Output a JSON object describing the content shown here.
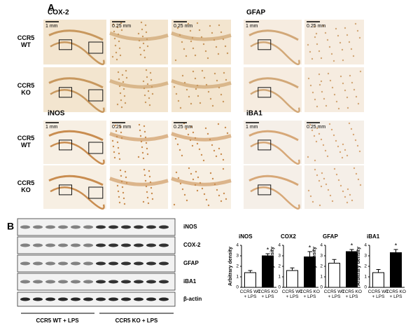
{
  "panel_a": {
    "label": "A",
    "groups": [
      {
        "title": "COX-2",
        "row_labels": [
          "CCR5 WT",
          "CCR5 KO"
        ],
        "scale_labels": [
          "1 mm",
          "0.25 mm",
          "0.25 mm"
        ]
      },
      {
        "title": "GFAP",
        "scale_labels": [
          "1 mm",
          "0.25 mm"
        ]
      },
      {
        "title": "iNOS",
        "row_labels": [
          "CCR5 WT",
          "CCR5 KO"
        ],
        "scale_labels": [
          "1 mm",
          "0.25 mm",
          "0.25 mm"
        ]
      },
      {
        "title": "iBA1",
        "scale_labels": [
          "1 mm",
          "0.25 mm"
        ]
      }
    ]
  },
  "panel_b": {
    "label": "B",
    "blot_labels": [
      "iNOS",
      "COX-2",
      "GFAP",
      "iBA1",
      "β-actin"
    ],
    "group_labels": [
      "CCR5 WT + LPS",
      "CCR5 KO + LPS"
    ]
  },
  "chart_data": [
    {
      "type": "bar",
      "title": "iNOS",
      "ylabel": "Arbitrary density",
      "categories": [
        "CCR5 WT + LPS",
        "CCR5 KO + LPS"
      ],
      "values": [
        1.4,
        3.0
      ],
      "errors": [
        0.2,
        0.2
      ],
      "colors": [
        "#ffffff",
        "#000000"
      ],
      "ylim": [
        0,
        4
      ],
      "yticks": [
        0,
        1,
        2,
        3,
        4
      ],
      "significance_label": "*"
    },
    {
      "type": "bar",
      "title": "COX2",
      "ylabel": "Arbitrary density",
      "categories": [
        "CCR5 WT + LPS",
        "CCR5 KO + LPS"
      ],
      "values": [
        1.6,
        2.9
      ],
      "errors": [
        0.25,
        0.5
      ],
      "colors": [
        "#ffffff",
        "#000000"
      ],
      "ylim": [
        0,
        4
      ],
      "yticks": [
        0,
        1,
        2,
        3,
        4
      ],
      "significance_label": "*"
    },
    {
      "type": "bar",
      "title": "GFAP",
      "ylabel": "Arbitrary density",
      "categories": [
        "CCR5 WT + LPS",
        "CCR5 KO + LPS"
      ],
      "values": [
        2.3,
        3.4
      ],
      "errors": [
        0.35,
        0.2
      ],
      "colors": [
        "#ffffff",
        "#000000"
      ],
      "ylim": [
        0,
        4
      ],
      "yticks": [
        0,
        1,
        2,
        3,
        4
      ],
      "significance_label": "*"
    },
    {
      "type": "bar",
      "title": "iBA1",
      "ylabel": "Arbitrary density",
      "categories": [
        "CCR5 WT + LPS",
        "CCR5 KO + LPS"
      ],
      "values": [
        1.4,
        3.3
      ],
      "errors": [
        0.3,
        0.3
      ],
      "colors": [
        "#ffffff",
        "#000000"
      ],
      "ylim": [
        0,
        4
      ],
      "yticks": [
        0,
        1,
        2,
        3,
        4
      ],
      "significance_label": "*"
    }
  ]
}
